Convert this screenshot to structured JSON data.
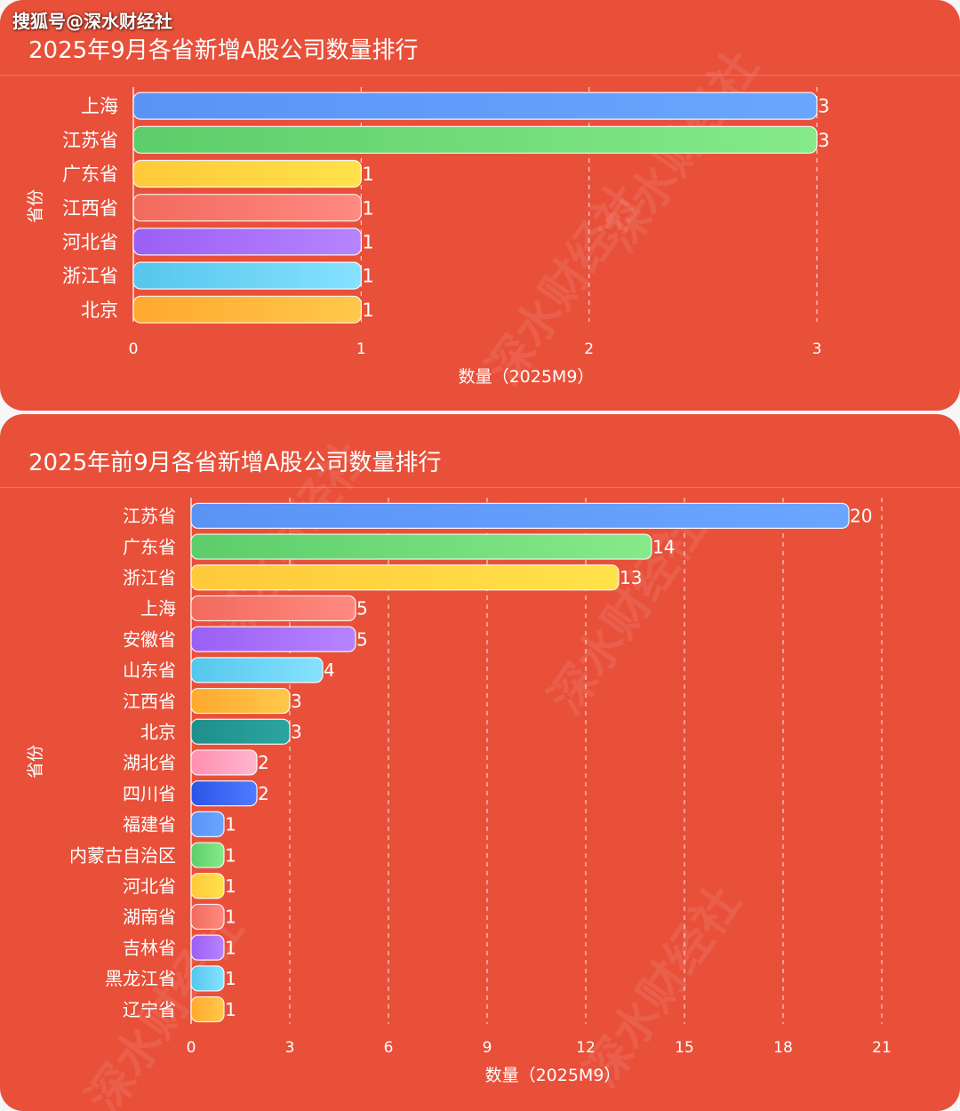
{
  "watermark": {
    "source": "搜狐号@深水财经社",
    "brand": "深水财经社"
  },
  "colors": {
    "panel_bg": "#e8503a",
    "text": "#ffffff",
    "palette": [
      [
        "#5b93f5",
        "#6aa6ff"
      ],
      [
        "#5ccd6a",
        "#86ea8a"
      ],
      [
        "#ffc93a",
        "#ffe24a"
      ],
      [
        "#f26a5e",
        "#ff8a80"
      ],
      [
        "#9a5ff5",
        "#b784ff"
      ],
      [
        "#55c6ec",
        "#86e2ff"
      ],
      [
        "#ffa92e",
        "#ffc84a"
      ],
      [
        "#1f8f8a",
        "#2aa59f"
      ],
      [
        "#ff8fb2",
        "#ffb6cf"
      ],
      [
        "#2b55e8",
        "#4f7bff"
      ]
    ]
  },
  "chart_data": [
    {
      "type": "bar",
      "orientation": "horizontal",
      "title": "2025年9月各省新增A股公司数量排行",
      "xlabel": "数量（2025M9）",
      "ylabel": "省份",
      "categories": [
        "上海",
        "江苏省",
        "广东省",
        "江西省",
        "河北省",
        "浙江省",
        "北京"
      ],
      "values": [
        3,
        3,
        1,
        1,
        1,
        1,
        1
      ],
      "bar_colors": [
        0,
        1,
        2,
        3,
        4,
        5,
        6
      ],
      "xlim": [
        0,
        3
      ],
      "xticks": [
        0,
        1,
        2,
        3
      ],
      "grid": "vertical-dashed",
      "data_labels": true
    },
    {
      "type": "bar",
      "orientation": "horizontal",
      "title": "2025年前9月各省新增A股公司数量排行",
      "xlabel": "数量（2025M9）",
      "ylabel": "省份",
      "categories": [
        "江苏省",
        "广东省",
        "浙江省",
        "上海",
        "安徽省",
        "山东省",
        "江西省",
        "北京",
        "湖北省",
        "四川省",
        "福建省",
        "内蒙古自治区",
        "河北省",
        "湖南省",
        "吉林省",
        "黑龙江省",
        "辽宁省"
      ],
      "values": [
        20,
        14,
        13,
        5,
        5,
        4,
        3,
        3,
        2,
        2,
        1,
        1,
        1,
        1,
        1,
        1,
        1
      ],
      "bar_colors": [
        0,
        1,
        2,
        3,
        4,
        5,
        6,
        7,
        8,
        9,
        0,
        1,
        2,
        3,
        4,
        5,
        6
      ],
      "xlim": [
        0,
        21
      ],
      "xticks": [
        0,
        3,
        6,
        9,
        12,
        15,
        18,
        21
      ],
      "grid": "vertical-dashed",
      "data_labels": true
    }
  ]
}
